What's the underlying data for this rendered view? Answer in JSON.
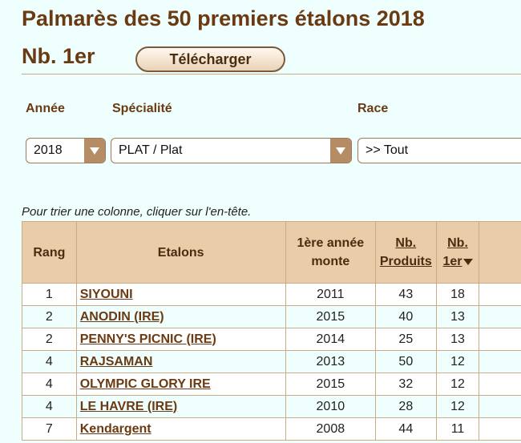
{
  "header": {
    "title": "Palmarès des 50 premiers étalons 2018",
    "subtitle": "Nb. 1er",
    "download_label": "Télécharger"
  },
  "filters": {
    "year": {
      "label": "Année",
      "value": "2018"
    },
    "specialty": {
      "label": "Spécialité",
      "value": "PLAT / Plat"
    },
    "breed": {
      "label": "Race",
      "value": ">> Tout"
    }
  },
  "hint": "Pour trier une colonne, cliquer sur l'en-tête.",
  "table": {
    "headers": {
      "rank": "Rang",
      "stallion": "Etalons",
      "year_line1": "1ère année",
      "year_line2": "monte",
      "products_line1": "Nb.",
      "products_line2": "Produits",
      "first_line1": "Nb.",
      "first_line2": "1er"
    },
    "rows": [
      {
        "rank": "1",
        "name": "SIYOUNI",
        "year": "2011",
        "products": "43",
        "first": "18"
      },
      {
        "rank": "2",
        "name": "ANODIN (IRE)",
        "year": "2015",
        "products": "40",
        "first": "13"
      },
      {
        "rank": "2",
        "name": "PENNY'S PICNIC (IRE)",
        "year": "2014",
        "products": "25",
        "first": "13"
      },
      {
        "rank": "4",
        "name": "RAJSAMAN",
        "year": "2013",
        "products": "50",
        "first": "12"
      },
      {
        "rank": "4",
        "name": "OLYMPIC GLORY IRE",
        "year": "2015",
        "products": "32",
        "first": "12"
      },
      {
        "rank": "4",
        "name": "LE HAVRE (IRE)",
        "year": "2010",
        "products": "28",
        "first": "12"
      },
      {
        "rank": "7",
        "name": "Kendargent",
        "year": "2008",
        "products": "44",
        "first": "11"
      }
    ]
  },
  "colors": {
    "title": "#6b3a12",
    "background": "#eefffd",
    "header_bg": "#e9cca8",
    "select_arrow_bg": "#b58c63"
  },
  "icons": {
    "select_arrow": "chevron-down-icon",
    "sort_arrow": "sort-desc-icon"
  }
}
